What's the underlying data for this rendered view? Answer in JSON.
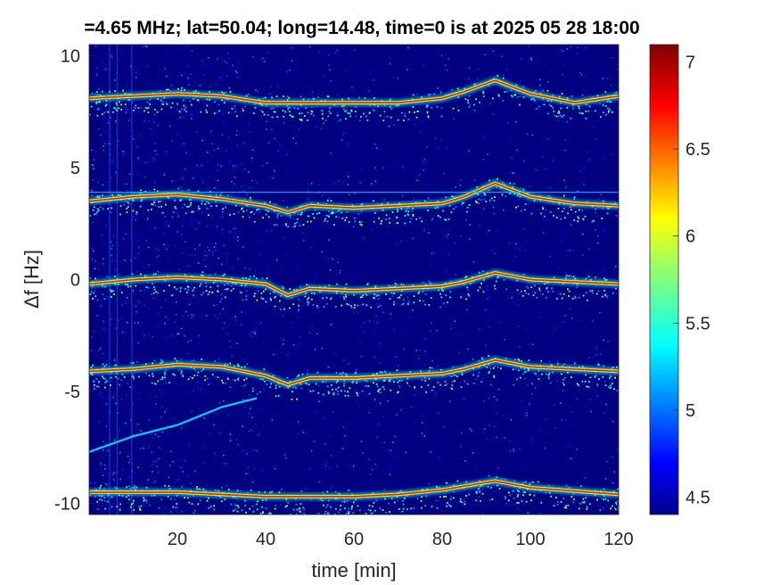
{
  "chart_data": {
    "type": "heatmap",
    "title": "=4.65 MHz;  lat=50.04; long=14.48, time=0 is at 2025 05 28 18:00",
    "xlabel": "time [min]",
    "ylabel": "Δf [Hz]",
    "xlim": [
      0,
      120
    ],
    "ylim": [
      -10.5,
      10.5
    ],
    "x_ticks": [
      "20",
      "40",
      "60",
      "80",
      "100",
      "120"
    ],
    "y_ticks": [
      "10",
      "5",
      "0",
      "-5",
      "-10"
    ],
    "colorbar": {
      "range": [
        4.4,
        7.1
      ],
      "ticks": [
        "7",
        "6.5",
        "6",
        "5.5",
        "5",
        "4.5"
      ],
      "colormap": "jet"
    },
    "series": [
      {
        "offset": 8,
        "x": [
          0,
          10,
          20,
          30,
          40,
          50,
          60,
          70,
          80,
          85,
          92,
          100,
          110,
          120
        ],
        "y": [
          8.1,
          8.2,
          8.3,
          8.2,
          7.9,
          7.9,
          7.9,
          7.9,
          8.1,
          8.4,
          8.9,
          8.3,
          7.9,
          8.2
        ]
      },
      {
        "offset": 4,
        "x": [
          0,
          10,
          20,
          30,
          40,
          45,
          50,
          60,
          70,
          80,
          85,
          92,
          100,
          110,
          120
        ],
        "y": [
          3.5,
          3.7,
          3.8,
          3.6,
          3.3,
          3.0,
          3.3,
          3.2,
          3.3,
          3.4,
          3.7,
          4.3,
          3.7,
          3.4,
          3.3
        ]
      },
      {
        "offset": 0,
        "x": [
          0,
          10,
          20,
          30,
          40,
          45,
          50,
          60,
          70,
          80,
          85,
          92,
          100,
          110,
          120
        ],
        "y": [
          -0.2,
          0.0,
          0.1,
          0.0,
          -0.2,
          -0.7,
          -0.4,
          -0.5,
          -0.4,
          -0.3,
          -0.1,
          0.3,
          0.0,
          -0.1,
          -0.2
        ]
      },
      {
        "offset": -4,
        "x": [
          0,
          10,
          20,
          30,
          40,
          45,
          50,
          60,
          70,
          80,
          85,
          92,
          100,
          110,
          120
        ],
        "y": [
          -4.1,
          -4.0,
          -3.8,
          -3.9,
          -4.3,
          -4.7,
          -4.4,
          -4.4,
          -4.3,
          -4.2,
          -4.0,
          -3.6,
          -3.9,
          -4.0,
          -4.1
        ]
      },
      {
        "offset": -9.5,
        "x": [
          0,
          20,
          40,
          60,
          70,
          80,
          92,
          100,
          120
        ],
        "y": [
          -9.5,
          -9.5,
          -9.7,
          -9.7,
          -9.6,
          -9.4,
          -9.0,
          -9.3,
          -9.6
        ]
      },
      {
        "offset": -7,
        "x": [
          0,
          10,
          20,
          30,
          38
        ],
        "y": [
          -7.7,
          -7.0,
          -6.5,
          -5.7,
          -5.3
        ]
      }
    ],
    "horizontal_line": {
      "y": 3.9
    },
    "background_color": "#000080"
  }
}
